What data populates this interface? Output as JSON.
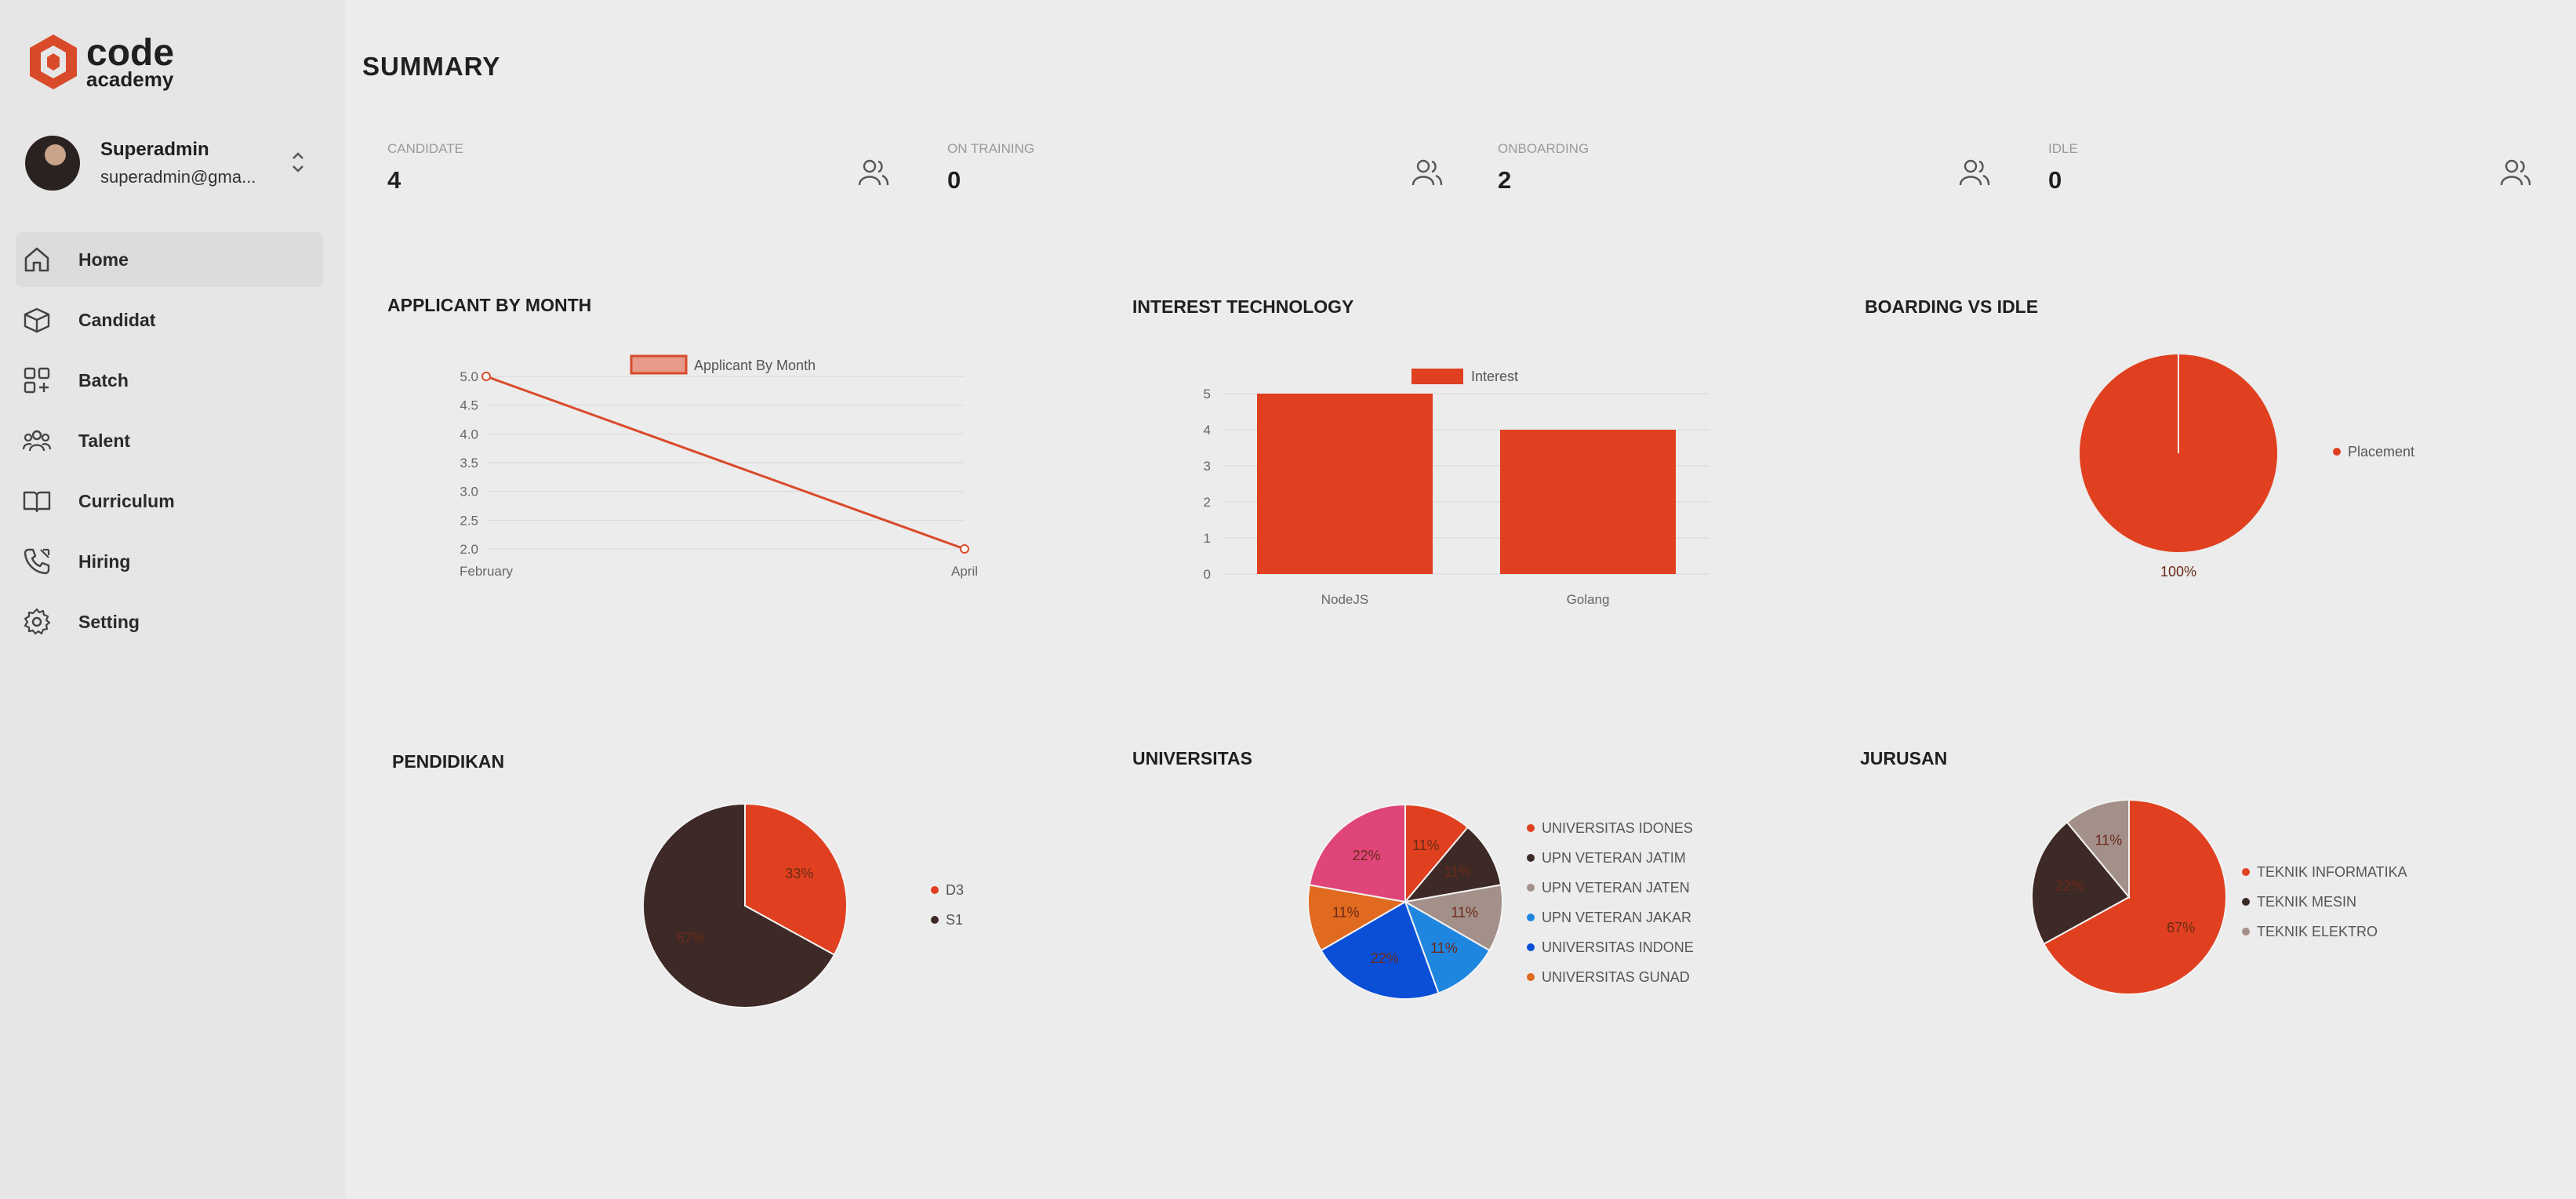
{
  "brand": {
    "code": "code",
    "academy": "academy",
    "accent": "#d94a2b"
  },
  "user": {
    "name": "Superadmin",
    "email": "superadmin@gma..."
  },
  "nav": [
    {
      "label": "Home",
      "icon": "home-icon",
      "active": true
    },
    {
      "label": "Candidat",
      "icon": "box-icon"
    },
    {
      "label": "Batch",
      "icon": "grid-icon"
    },
    {
      "label": "Talent",
      "icon": "team-icon"
    },
    {
      "label": "Curriculum",
      "icon": "book-icon"
    },
    {
      "label": "Hiring",
      "icon": "phone-icon"
    },
    {
      "label": "Setting",
      "icon": "gear-icon"
    }
  ],
  "page": {
    "title": "SUMMARY"
  },
  "stats": [
    {
      "label": "CANDIDATE",
      "value": "4",
      "icon": "users-icon"
    },
    {
      "label": "ON TRAINING",
      "value": "0",
      "icon": "users-icon"
    },
    {
      "label": "ONBOARDING",
      "value": "2",
      "icon": "users-icon"
    },
    {
      "label": "IDLE",
      "value": "0",
      "icon": "users-icon"
    }
  ],
  "cards": {
    "applicant": "APPLICANT BY MONTH",
    "interest": "INTEREST TECHNOLOGY",
    "boarding": "BOARDING VS IDLE",
    "pendidikan": "PENDIDIKAN",
    "universitas": "UNIVERSITAS",
    "jurusan": "JURUSAN"
  },
  "chart_data": [
    {
      "id": "applicant",
      "type": "line",
      "x": [
        "February",
        "April"
      ],
      "series": [
        {
          "name": "Applicant By Month",
          "values": [
            5.0,
            2.0
          ],
          "color": "#d94a2b"
        }
      ],
      "yticks": [
        "2.0",
        "2.5",
        "3.0",
        "3.5",
        "4.0",
        "4.5",
        "5.0"
      ],
      "ylim": [
        2.0,
        5.0
      ],
      "grid": true,
      "legend": "top"
    },
    {
      "id": "interest",
      "type": "bar",
      "categories": [
        "NodeJS",
        "Golang"
      ],
      "series": [
        {
          "name": "Interest",
          "values": [
            5,
            4
          ],
          "color": "#e0401f"
        }
      ],
      "yticks": [
        "0",
        "1",
        "2",
        "3",
        "4",
        "5"
      ],
      "ylim": [
        0,
        5
      ],
      "grid": true,
      "legend": "top"
    },
    {
      "id": "boarding",
      "type": "pie",
      "slices": [
        {
          "label": "Placement",
          "value": 100,
          "text": "100%",
          "color": "#e0401f"
        }
      ],
      "legend": "right"
    },
    {
      "id": "pendidikan",
      "type": "pie",
      "slices": [
        {
          "label": "D3",
          "value": 33,
          "text": "33%",
          "color": "#e0401f"
        },
        {
          "label": "S1",
          "value": 67,
          "text": "67%",
          "color": "#3d2925"
        }
      ],
      "legend": "right"
    },
    {
      "id": "universitas",
      "type": "pie",
      "slices": [
        {
          "label": "UNIVERSITAS IDONES",
          "value": 11,
          "text": "11%",
          "color": "#e0401f"
        },
        {
          "label": "UPN VETERAN JATIM",
          "value": 11,
          "text": "11%",
          "color": "#3d2925"
        },
        {
          "label": "UPN VETERAN JATEN",
          "value": 11,
          "text": "11%",
          "color": "#a39089"
        },
        {
          "label": "UPN VETERAN JAKAR",
          "value": 11,
          "text": "11%",
          "color": "#1f86e0"
        },
        {
          "label": "UNIVERSITAS INDONE",
          "value": 22,
          "text": "22%",
          "color": "#0a4fd6"
        },
        {
          "label": "UNIVERSITAS GUNAD",
          "value": 11,
          "text": "11%",
          "color": "#e06a1f"
        },
        {
          "label": "",
          "value": 22,
          "text": "22%",
          "color": "#e0457a"
        }
      ],
      "legend": "right"
    },
    {
      "id": "jurusan",
      "type": "pie",
      "slices": [
        {
          "label": "TEKNIK INFORMATIKA",
          "value": 67,
          "text": "67%",
          "color": "#e0401f"
        },
        {
          "label": "TEKNIK MESIN",
          "value": 22,
          "text": "22%",
          "color": "#3d2925"
        },
        {
          "label": "TEKNIK ELEKTRO",
          "value": 11,
          "text": "11%",
          "color": "#a39089"
        }
      ],
      "legend": "right"
    }
  ]
}
